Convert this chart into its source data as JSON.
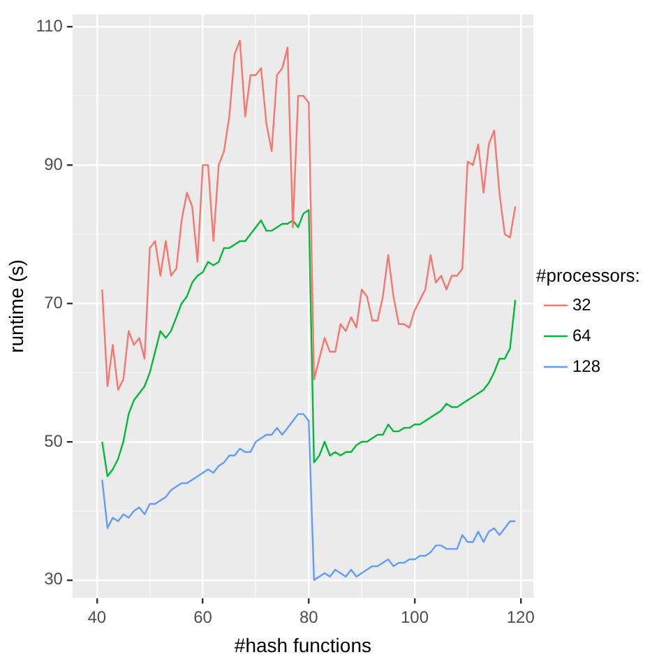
{
  "chart_data": {
    "type": "line",
    "xlabel": "#hash functions",
    "ylabel": "runtime (s)",
    "legend_title": "#processors:",
    "legend": "right",
    "grid": true,
    "marker": "none",
    "line_style": "solid",
    "x": [
      41,
      42,
      43,
      44,
      45,
      46,
      47,
      48,
      49,
      50,
      51,
      52,
      53,
      54,
      55,
      56,
      57,
      58,
      59,
      60,
      61,
      62,
      63,
      64,
      65,
      66,
      67,
      68,
      69,
      70,
      71,
      72,
      73,
      74,
      75,
      76,
      77,
      78,
      79,
      80,
      81,
      82,
      83,
      84,
      85,
      86,
      87,
      88,
      89,
      90,
      91,
      92,
      93,
      94,
      95,
      96,
      97,
      98,
      99,
      100,
      101,
      102,
      103,
      104,
      105,
      106,
      107,
      108,
      109,
      110,
      111,
      112,
      113,
      114,
      115,
      116,
      117,
      118,
      119
    ],
    "xlim": [
      35.4,
      122.4
    ],
    "xticks": [
      40,
      {
        "value": 50,
        "label": null
      },
      60,
      {
        "value": 70,
        "label": null
      },
      80,
      {
        "value": 90,
        "label": null
      },
      100,
      {
        "value": 110,
        "label": null
      },
      120
    ],
    "ylim": [
      27.4,
      111.8
    ],
    "yticks": [
      30,
      {
        "value": 40,
        "label": null
      },
      50,
      {
        "value": 60,
        "label": null
      },
      70,
      {
        "value": 80,
        "label": null
      },
      90,
      {
        "value": 100,
        "label": null
      },
      110
    ],
    "series": [
      {
        "name": "32",
        "color": "#f8766d",
        "values": [
          72,
          58,
          64,
          57.5,
          59,
          66,
          64,
          65,
          62,
          78,
          79,
          74,
          79,
          74,
          75,
          82,
          86,
          84,
          76,
          90,
          90,
          79,
          90,
          92,
          97,
          106,
          108,
          97,
          103,
          103,
          104,
          96,
          92,
          103,
          104,
          107,
          81,
          100,
          100,
          99,
          59,
          62,
          65,
          63,
          63,
          67,
          66,
          68,
          66.5,
          72,
          71,
          67.5,
          67.5,
          71,
          77,
          71,
          67,
          67,
          66.5,
          69,
          70.5,
          72,
          77,
          73,
          74,
          72,
          74,
          74,
          75,
          90.5,
          90,
          93,
          86,
          93,
          95,
          86,
          80,
          79.5,
          84
        ]
      },
      {
        "name": "64",
        "color": "#00ba38",
        "values": [
          50,
          45,
          46,
          47.5,
          50,
          54,
          56,
          57,
          58,
          60,
          63,
          66,
          65,
          66,
          68,
          70,
          71,
          73,
          74,
          74.5,
          76,
          75.5,
          76,
          78,
          78,
          78.5,
          79,
          79,
          80,
          81,
          82,
          80.5,
          80.5,
          81,
          81.5,
          81.5,
          82,
          81,
          83,
          83.5,
          47,
          48,
          50,
          48,
          48.5,
          48,
          48.5,
          48.5,
          49.5,
          50,
          50,
          50.5,
          51,
          51,
          52.5,
          51.5,
          51.5,
          52,
          52,
          52.5,
          52.5,
          53,
          53.5,
          54,
          54.5,
          55.5,
          55,
          55,
          55.5,
          56,
          56.5,
          57,
          57.5,
          58.5,
          60,
          62,
          62,
          63.5,
          70.5
        ]
      },
      {
        "name": "128",
        "color": "#619cff",
        "values": [
          44.5,
          37.5,
          39,
          38.5,
          39.5,
          39,
          40,
          40.5,
          39.5,
          41,
          41,
          41.5,
          42,
          43,
          43.5,
          44,
          44,
          44.5,
          45,
          45.5,
          46,
          45.5,
          46.5,
          47,
          48,
          48,
          49,
          48.5,
          48.5,
          50,
          50.5,
          51,
          51,
          52,
          51,
          52,
          53,
          54,
          54,
          53,
          30,
          30.5,
          31,
          30.5,
          31.5,
          31,
          30.5,
          31.5,
          30.5,
          31,
          31.5,
          32,
          32,
          32.5,
          33,
          32,
          32.5,
          32.5,
          33,
          33,
          33.5,
          33.5,
          34,
          35,
          35,
          34.5,
          34.5,
          34.5,
          36.5,
          35.5,
          35.5,
          37,
          35.5,
          37,
          37.5,
          36.5,
          37.5,
          38.5,
          38.5
        ]
      }
    ]
  }
}
